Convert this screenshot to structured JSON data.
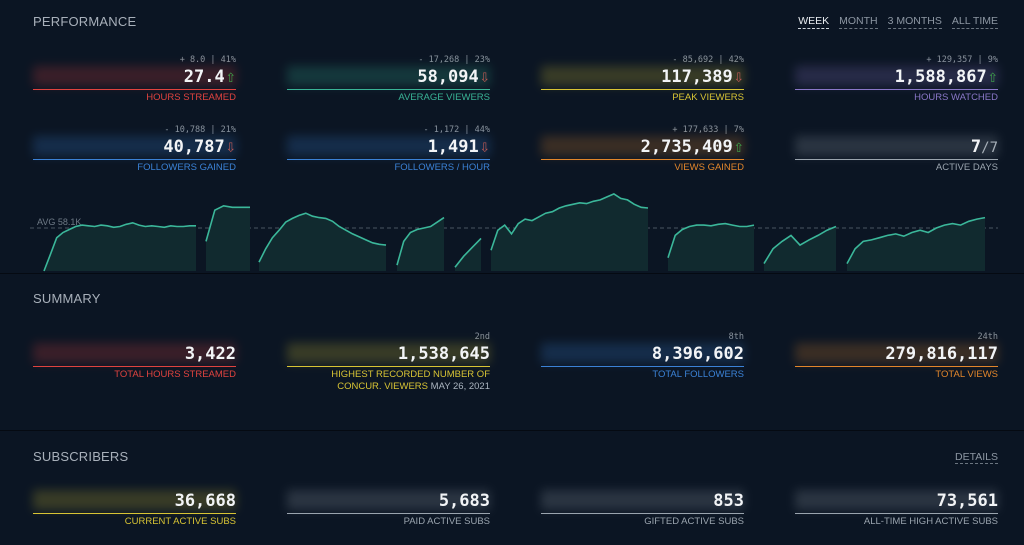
{
  "performance": {
    "title": "PERFORMANCE",
    "range_tabs": [
      "WEEK",
      "MONTH",
      "3 MONTHS",
      "ALL TIME"
    ],
    "active_tab": "WEEK",
    "stats": [
      {
        "delta": "+ 8.0 | 41%",
        "value": "27.4",
        "arrow": "⇧",
        "dir": "up",
        "label": "HOURS STREAMED",
        "color": "#e0433f"
      },
      {
        "delta": "- 17,268 | 23%",
        "value": "58,094",
        "arrow": "⇩",
        "dir": "down",
        "label": "AVERAGE VIEWERS",
        "color": "#39b496"
      },
      {
        "delta": "- 85,692 | 42%",
        "value": "117,389",
        "arrow": "⇩",
        "dir": "down",
        "label": "PEAK VIEWERS",
        "color": "#d8c434"
      },
      {
        "delta": "+ 129,357 | 9%",
        "value": "1,588,867",
        "arrow": "⇧",
        "dir": "up",
        "label": "HOURS WATCHED",
        "color": "#8a77c8"
      },
      {
        "delta": "- 10,788 | 21%",
        "value": "40,787",
        "arrow": "⇩",
        "dir": "down",
        "label": "FOLLOWERS GAINED",
        "color": "#3b82d6"
      },
      {
        "delta": "- 1,172 | 44%",
        "value": "1,491",
        "arrow": "⇩",
        "dir": "down",
        "label": "FOLLOWERS / HOUR",
        "color": "#3b82d6"
      },
      {
        "delta": "+ 177,633 | 7%",
        "value": "2,735,409",
        "arrow": "⇧",
        "dir": "up",
        "label": "VIEWS GAINED",
        "color": "#e2862b"
      },
      {
        "delta": "",
        "value": "7",
        "denom": "/7",
        "arrow": "",
        "dir": "",
        "label": "ACTIVE DAYS",
        "color": "#9aa4ae"
      }
    ],
    "avg_label": "AVG 58.1K"
  },
  "summary": {
    "title": "SUMMARY",
    "stats": [
      {
        "rank": "",
        "value": "3,422",
        "label": "TOTAL HOURS STREAMED",
        "color": "#e0433f"
      },
      {
        "rank": "2nd",
        "value": "1,538,645",
        "label": "HIGHEST RECORDED NUMBER OF",
        "label2": "CONCUR. VIEWERS",
        "date": "MAY 26, 2021",
        "color": "#d8c434"
      },
      {
        "rank": "8th",
        "value": "8,396,602",
        "label": "TOTAL FOLLOWERS",
        "color": "#3b82d6"
      },
      {
        "rank": "24th",
        "value": "279,816,117",
        "label": "TOTAL VIEWS",
        "color": "#e2862b"
      }
    ]
  },
  "subscribers": {
    "title": "SUBSCRIBERS",
    "details_label": "DETAILS",
    "stats": [
      {
        "value": "36,668",
        "label": "CURRENT ACTIVE SUBS",
        "color": "#d8c434"
      },
      {
        "value": "5,683",
        "label": "PAID ACTIVE SUBS",
        "color": "#9aa4ae"
      },
      {
        "value": "853",
        "label": "GIFTED ACTIVE SUBS",
        "color": "#9aa4ae"
      },
      {
        "value": "73,561",
        "label": "ALL-TIME HIGH ACTIVE SUBS",
        "color": "#9aa4ae"
      }
    ]
  },
  "chart_data": {
    "type": "area",
    "avg": 58.1,
    "ymax": 117.4,
    "color": "#3bb79a",
    "segments": [
      [
        0,
        22,
        45,
        52,
        56,
        60,
        62,
        61,
        60,
        62,
        61,
        59,
        60,
        63,
        65,
        62,
        60,
        61,
        60,
        59,
        61,
        60,
        60,
        61,
        61
      ],
      [
        40,
        82,
        88,
        86,
        86,
        86
      ],
      [
        12,
        30,
        45,
        55,
        66,
        71,
        75,
        78,
        74,
        72,
        71,
        67,
        60,
        55,
        50,
        46,
        42,
        38,
        36,
        35
      ],
      [
        8,
        40,
        52,
        56,
        58,
        60,
        66,
        72
      ],
      [
        5,
        20,
        32,
        44
      ],
      [
        28,
        55,
        62,
        50,
        64,
        70,
        68,
        73,
        78,
        80,
        85,
        88,
        90,
        92,
        91,
        94,
        96,
        100,
        104,
        98,
        96,
        90,
        86,
        85
      ],
      [
        18,
        48,
        56,
        60,
        62,
        62,
        61,
        63,
        64,
        62,
        60,
        60,
        62
      ],
      [
        10,
        30,
        40,
        48,
        35,
        42,
        48,
        55,
        60
      ],
      [
        10,
        30,
        40,
        42,
        45,
        48,
        50,
        47,
        52,
        55,
        52,
        58,
        62,
        64,
        62,
        67,
        70,
        72
      ]
    ]
  }
}
